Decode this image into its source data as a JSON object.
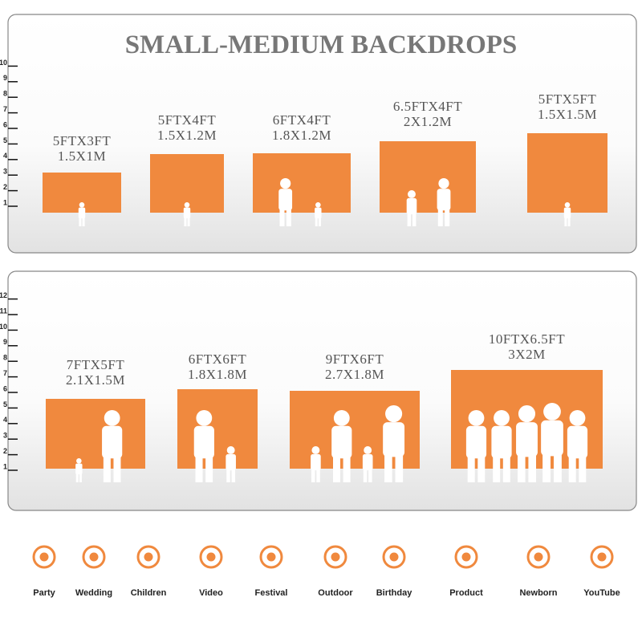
{
  "title": "SMALL-MEDIUM BACKDROPS",
  "panels": [
    {
      "ruler": [
        1,
        2,
        3,
        4,
        5,
        6,
        7,
        8,
        9,
        10
      ],
      "items": [
        {
          "size_ft": "5FTX3FT",
          "size_m": "1.5X1M"
        },
        {
          "size_ft": "5FTX4FT",
          "size_m": "1.5X1.2M"
        },
        {
          "size_ft": "6FTX4FT",
          "size_m": "1.8X1.2M"
        },
        {
          "size_ft": "6.5FTX4FT",
          "size_m": "2X1.2M"
        },
        {
          "size_ft": "5FTX5FT",
          "size_m": "1.5X1.5M"
        }
      ]
    },
    {
      "ruler": [
        1,
        2,
        3,
        4,
        5,
        6,
        7,
        8,
        9,
        10,
        11,
        12
      ],
      "items": [
        {
          "size_ft": "7FTX5FT",
          "size_m": "2.1X1.5M"
        },
        {
          "size_ft": "6FTX6FT",
          "size_m": "1.8X1.8M"
        },
        {
          "size_ft": "9FTX6FT",
          "size_m": "2.7X1.8M"
        },
        {
          "size_ft": "10FTX6.5FT",
          "size_m": "3X2M"
        }
      ]
    }
  ],
  "icons": [
    "Party",
    "Wedding",
    "Children",
    "Video",
    "Festival",
    "Outdoor",
    "Birthday",
    "Product",
    "Newborn",
    "YouTube"
  ]
}
